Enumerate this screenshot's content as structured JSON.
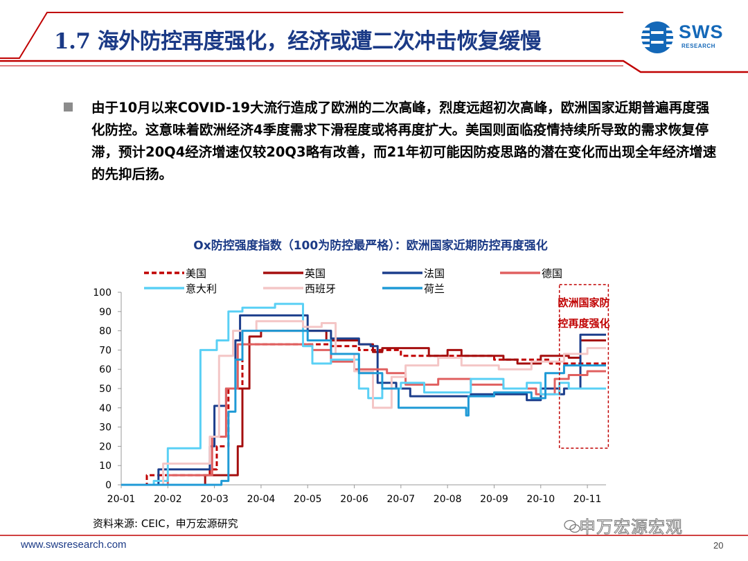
{
  "slide": {
    "title": "1.7 海外防控再度强化，经济或遭二次冲击恢复缓慢",
    "logo_text": "SWS",
    "logo_sub": "RESEARCH",
    "bullet": "由于10月以来COVID-19大流行造成了欧洲的二次高峰，烈度远超初次高峰，欧洲国家近期普遍再度强化防控。这意味着欧洲经济4季度需求下滑程度或将再度扩大。美国则面临疫情持续所导致的需求恢复停滞，预计20Q4经济增速仅较20Q3略有改善，而21年初可能因防疫思路的潜在变化而出现全年经济增速的先抑后扬。",
    "source": "资料来源: CEIC，申万宏源研究",
    "footer_url": "www.swsresearch.com",
    "page_number": "20",
    "watermark": "申万宏源宏观",
    "colors": {
      "title": "#1b3a86",
      "accent_line": "#c00000",
      "logo": "#1468b8"
    }
  },
  "chart_data": {
    "type": "line",
    "title": "Ox防控强度指数（100为防控最严格）：欧洲国家近期防控再度强化",
    "xlabel": "",
    "ylabel": "",
    "x_ticks": [
      "20-01",
      "20-02",
      "20-03",
      "20-04",
      "20-05",
      "20-06",
      "20-07",
      "20-08",
      "20-09",
      "20-10",
      "20-11"
    ],
    "y_ticks": [
      0,
      10,
      20,
      30,
      40,
      50,
      60,
      70,
      80,
      90,
      100
    ],
    "ylim": [
      0,
      100
    ],
    "xlim": [
      0,
      10.4
    ],
    "grid": false,
    "legend_position": "top",
    "annotation": {
      "lines": [
        "欧洲国家防",
        "控再度强化"
      ],
      "x_range": [
        9.4,
        10.45
      ],
      "y_range": [
        19,
        104
      ]
    },
    "series": [
      {
        "name": "美国",
        "color": "#c00000",
        "dash": "7,4",
        "width": 3,
        "points": [
          [
            0,
            0
          ],
          [
            0.55,
            0
          ],
          [
            0.55,
            5
          ],
          [
            1.9,
            5
          ],
          [
            1.9,
            8
          ],
          [
            2.05,
            8
          ],
          [
            2.05,
            20
          ],
          [
            2.3,
            20
          ],
          [
            2.3,
            50
          ],
          [
            2.6,
            50
          ],
          [
            2.6,
            73
          ],
          [
            3.6,
            73
          ],
          [
            3.6,
            73
          ],
          [
            4.5,
            73
          ],
          [
            4.5,
            72
          ],
          [
            5.1,
            72
          ],
          [
            5.1,
            70
          ],
          [
            6.0,
            70
          ],
          [
            6.0,
            67
          ],
          [
            8.0,
            67
          ],
          [
            8.0,
            65
          ],
          [
            9.2,
            65
          ],
          [
            9.2,
            63
          ],
          [
            10.4,
            63
          ]
        ]
      },
      {
        "name": "英国",
        "color": "#a50f0f",
        "dash": "",
        "width": 3,
        "points": [
          [
            0,
            0
          ],
          [
            1.8,
            0
          ],
          [
            1.8,
            5
          ],
          [
            2.5,
            5
          ],
          [
            2.5,
            20
          ],
          [
            2.6,
            20
          ],
          [
            2.6,
            50
          ],
          [
            2.75,
            50
          ],
          [
            2.75,
            77
          ],
          [
            3.0,
            77
          ],
          [
            3.0,
            80
          ],
          [
            4.4,
            80
          ],
          [
            4.4,
            75
          ],
          [
            5.1,
            75
          ],
          [
            5.1,
            73
          ],
          [
            5.4,
            73
          ],
          [
            5.4,
            69
          ],
          [
            5.6,
            69
          ],
          [
            5.6,
            71
          ],
          [
            6.6,
            71
          ],
          [
            6.6,
            67
          ],
          [
            7.0,
            67
          ],
          [
            7.0,
            70
          ],
          [
            7.3,
            70
          ],
          [
            7.3,
            67
          ],
          [
            8.2,
            67
          ],
          [
            8.2,
            65
          ],
          [
            8.5,
            65
          ],
          [
            8.5,
            63
          ],
          [
            9.0,
            63
          ],
          [
            9.0,
            67
          ],
          [
            9.6,
            67
          ],
          [
            9.6,
            66
          ],
          [
            9.85,
            66
          ],
          [
            9.85,
            75
          ],
          [
            10.4,
            75
          ]
        ]
      },
      {
        "name": "法国",
        "color": "#1c3e8c",
        "dash": "",
        "width": 3,
        "points": [
          [
            0,
            0
          ],
          [
            0.8,
            0
          ],
          [
            0.8,
            8
          ],
          [
            1.9,
            8
          ],
          [
            1.9,
            20
          ],
          [
            2.0,
            20
          ],
          [
            2.0,
            41
          ],
          [
            2.25,
            41
          ],
          [
            2.25,
            50
          ],
          [
            2.45,
            50
          ],
          [
            2.45,
            75
          ],
          [
            2.55,
            75
          ],
          [
            2.55,
            88
          ],
          [
            4.0,
            88
          ],
          [
            4.0,
            80
          ],
          [
            4.5,
            80
          ],
          [
            4.5,
            76
          ],
          [
            5.1,
            76
          ],
          [
            5.1,
            73
          ],
          [
            5.35,
            73
          ],
          [
            5.35,
            72
          ],
          [
            5.5,
            72
          ],
          [
            5.5,
            53
          ],
          [
            5.9,
            53
          ],
          [
            5.9,
            50
          ],
          [
            6.2,
            50
          ],
          [
            6.2,
            46
          ],
          [
            7.5,
            46
          ],
          [
            7.5,
            47
          ],
          [
            8.7,
            47
          ],
          [
            8.7,
            44
          ],
          [
            9.0,
            44
          ],
          [
            9.0,
            50
          ],
          [
            9.4,
            50
          ],
          [
            9.4,
            47
          ],
          [
            9.5,
            47
          ],
          [
            9.5,
            50
          ],
          [
            9.85,
            50
          ],
          [
            9.85,
            78
          ],
          [
            10.4,
            78
          ]
        ]
      },
      {
        "name": "德国",
        "color": "#e06060",
        "dash": "",
        "width": 3,
        "points": [
          [
            0,
            0
          ],
          [
            1.0,
            0
          ],
          [
            1.0,
            5
          ],
          [
            1.95,
            5
          ],
          [
            1.95,
            25
          ],
          [
            2.25,
            25
          ],
          [
            2.25,
            50
          ],
          [
            2.5,
            50
          ],
          [
            2.5,
            73
          ],
          [
            3.2,
            73
          ],
          [
            3.2,
            73
          ],
          [
            4.1,
            73
          ],
          [
            4.1,
            70
          ],
          [
            4.5,
            70
          ],
          [
            4.5,
            64
          ],
          [
            5.0,
            64
          ],
          [
            5.0,
            60
          ],
          [
            5.7,
            60
          ],
          [
            5.7,
            58
          ],
          [
            6.1,
            58
          ],
          [
            6.1,
            52
          ],
          [
            6.8,
            52
          ],
          [
            6.8,
            55
          ],
          [
            7.5,
            55
          ],
          [
            7.5,
            52
          ],
          [
            8.2,
            52
          ],
          [
            8.2,
            50
          ],
          [
            8.9,
            50
          ],
          [
            8.9,
            47
          ],
          [
            9.3,
            47
          ],
          [
            9.3,
            55
          ],
          [
            9.6,
            55
          ],
          [
            9.6,
            57
          ],
          [
            10.0,
            57
          ],
          [
            10.0,
            59
          ],
          [
            10.4,
            59
          ]
        ]
      },
      {
        "name": "意大利",
        "color": "#5ad0f5",
        "dash": "",
        "width": 3,
        "points": [
          [
            0,
            0
          ],
          [
            0.7,
            0
          ],
          [
            0.7,
            2
          ],
          [
            1.0,
            2
          ],
          [
            1.0,
            19
          ],
          [
            1.7,
            19
          ],
          [
            1.7,
            70
          ],
          [
            2.05,
            70
          ],
          [
            2.05,
            75
          ],
          [
            2.3,
            75
          ],
          [
            2.3,
            90
          ],
          [
            2.6,
            90
          ],
          [
            2.6,
            92
          ],
          [
            3.3,
            92
          ],
          [
            3.3,
            94
          ],
          [
            3.9,
            94
          ],
          [
            3.9,
            72
          ],
          [
            4.1,
            72
          ],
          [
            4.1,
            63
          ],
          [
            4.5,
            63
          ],
          [
            4.5,
            65
          ],
          [
            5.1,
            65
          ],
          [
            5.1,
            50
          ],
          [
            5.3,
            50
          ],
          [
            5.3,
            45
          ],
          [
            5.6,
            45
          ],
          [
            5.6,
            50
          ],
          [
            6.0,
            50
          ],
          [
            6.0,
            53
          ],
          [
            6.5,
            53
          ],
          [
            6.5,
            48
          ],
          [
            7.5,
            48
          ],
          [
            7.5,
            55
          ],
          [
            8.2,
            55
          ],
          [
            8.2,
            50
          ],
          [
            8.7,
            50
          ],
          [
            8.7,
            53
          ],
          [
            9.0,
            53
          ],
          [
            9.0,
            47
          ],
          [
            9.4,
            47
          ],
          [
            9.4,
            53
          ],
          [
            9.6,
            53
          ],
          [
            9.6,
            50
          ],
          [
            10.4,
            50
          ]
        ]
      },
      {
        "name": "西班牙",
        "color": "#f4c6c6",
        "dash": "",
        "width": 3,
        "points": [
          [
            0,
            0
          ],
          [
            0.9,
            0
          ],
          [
            0.9,
            11
          ],
          [
            1.9,
            11
          ],
          [
            1.9,
            25
          ],
          [
            2.1,
            25
          ],
          [
            2.1,
            67
          ],
          [
            2.4,
            67
          ],
          [
            2.4,
            80
          ],
          [
            2.9,
            80
          ],
          [
            2.9,
            85
          ],
          [
            3.9,
            85
          ],
          [
            3.9,
            82
          ],
          [
            4.3,
            82
          ],
          [
            4.3,
            84
          ],
          [
            4.6,
            84
          ],
          [
            4.6,
            68
          ],
          [
            5.0,
            68
          ],
          [
            5.0,
            59
          ],
          [
            5.4,
            59
          ],
          [
            5.4,
            40
          ],
          [
            5.8,
            40
          ],
          [
            5.8,
            56
          ],
          [
            6.1,
            56
          ],
          [
            6.1,
            62
          ],
          [
            6.8,
            62
          ],
          [
            6.8,
            66
          ],
          [
            7.3,
            66
          ],
          [
            7.3,
            62
          ],
          [
            8.1,
            62
          ],
          [
            8.1,
            60
          ],
          [
            8.8,
            60
          ],
          [
            8.8,
            64
          ],
          [
            9.5,
            64
          ],
          [
            9.5,
            68
          ],
          [
            10.0,
            68
          ],
          [
            10.0,
            71
          ],
          [
            10.4,
            71
          ]
        ]
      },
      {
        "name": "荷兰",
        "color": "#1f9ad6",
        "dash": "",
        "width": 3,
        "points": [
          [
            0,
            0
          ],
          [
            2.15,
            0
          ],
          [
            2.15,
            2
          ],
          [
            2.3,
            2
          ],
          [
            2.3,
            38
          ],
          [
            2.45,
            38
          ],
          [
            2.45,
            65
          ],
          [
            2.6,
            65
          ],
          [
            2.6,
            80
          ],
          [
            4.0,
            80
          ],
          [
            4.0,
            75
          ],
          [
            4.5,
            75
          ],
          [
            4.5,
            68
          ],
          [
            5.1,
            68
          ],
          [
            5.1,
            58
          ],
          [
            5.6,
            58
          ],
          [
            5.6,
            50
          ],
          [
            5.95,
            50
          ],
          [
            5.95,
            40
          ],
          [
            7.4,
            40
          ],
          [
            7.4,
            36
          ],
          [
            7.45,
            36
          ],
          [
            7.45,
            46
          ],
          [
            8.0,
            46
          ],
          [
            8.0,
            48
          ],
          [
            8.8,
            48
          ],
          [
            8.8,
            45
          ],
          [
            9.1,
            45
          ],
          [
            9.1,
            58
          ],
          [
            9.5,
            58
          ],
          [
            9.5,
            62
          ],
          [
            10.4,
            62
          ]
        ]
      }
    ]
  }
}
